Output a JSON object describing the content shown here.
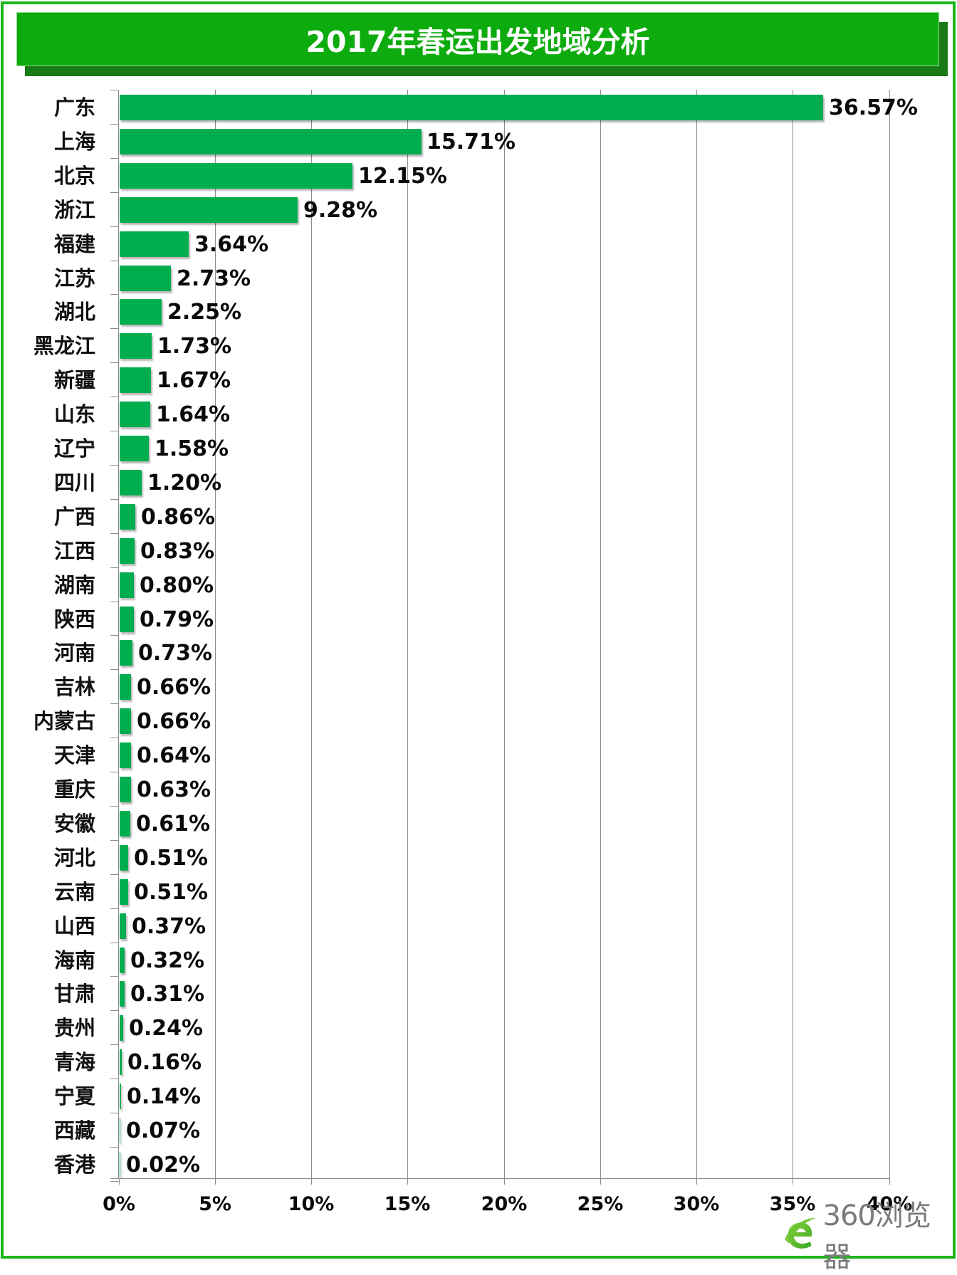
{
  "title": "2017年春运出发地域分析",
  "watermark": {
    "brand": "360浏览器",
    "icon": "360-browser-e-logo-icon"
  },
  "colors": {
    "bar": "#00ad4f",
    "title_bg": "#0dab0d",
    "title_shadow": "#1a7a15",
    "frame": "#1cb51c",
    "grid": "#8c8c8c"
  },
  "chart_data": {
    "type": "bar",
    "orientation": "horizontal",
    "title": "2017年春运出发地域分析",
    "xlabel": "",
    "ylabel": "",
    "xlim": [
      0,
      40
    ],
    "x_ticks": [
      "0%",
      "5%",
      "10%",
      "15%",
      "20%",
      "25%",
      "30%",
      "35%",
      "40%"
    ],
    "grid": "vertical",
    "legend": "none",
    "categories": [
      "广东",
      "上海",
      "北京",
      "浙江",
      "福建",
      "江苏",
      "湖北",
      "黑龙江",
      "新疆",
      "山东",
      "辽宁",
      "四川",
      "广西",
      "江西",
      "湖南",
      "陕西",
      "河南",
      "吉林",
      "内蒙古",
      "天津",
      "重庆",
      "安徽",
      "河北",
      "云南",
      "山西",
      "海南",
      "甘肃",
      "贵州",
      "青海",
      "宁夏",
      "西藏",
      "香港"
    ],
    "values": [
      36.57,
      15.71,
      12.15,
      9.28,
      3.64,
      2.73,
      2.25,
      1.73,
      1.67,
      1.64,
      1.58,
      1.2,
      0.86,
      0.83,
      0.8,
      0.79,
      0.73,
      0.66,
      0.66,
      0.64,
      0.63,
      0.61,
      0.51,
      0.51,
      0.37,
      0.32,
      0.31,
      0.24,
      0.16,
      0.14,
      0.07,
      0.02
    ],
    "value_labels": [
      "36.57%",
      "15.71%",
      "12.15%",
      "9.28%",
      "3.64%",
      "2.73%",
      "2.25%",
      "1.73%",
      "1.67%",
      "1.64%",
      "1.58%",
      "1.20%",
      "0.86%",
      "0.83%",
      "0.80%",
      "0.79%",
      "0.73%",
      "0.66%",
      "0.66%",
      "0.64%",
      "0.63%",
      "0.61%",
      "0.51%",
      "0.51%",
      "0.37%",
      "0.32%",
      "0.31%",
      "0.24%",
      "0.16%",
      "0.14%",
      "0.07%",
      "0.02%"
    ],
    "unit": "%"
  }
}
